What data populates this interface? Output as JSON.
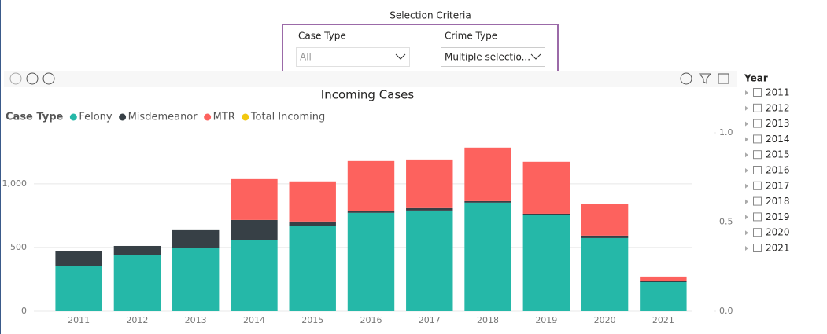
{
  "selection": {
    "title": "Selection Criteria",
    "filters": [
      {
        "label": "Case Type",
        "value": "All"
      },
      {
        "label": "Crime Type",
        "value": "Multiple selectio..."
      }
    ]
  },
  "year_slicer": {
    "title": "Year",
    "items": [
      "2011",
      "2012",
      "2013",
      "2014",
      "2015",
      "2016",
      "2017",
      "2018",
      "2019",
      "2020",
      "2021"
    ]
  },
  "chart_data": {
    "type": "bar",
    "stacked": true,
    "title": "Incoming Cases",
    "legend_title": "Case Type",
    "categories": [
      "2011",
      "2012",
      "2013",
      "2014",
      "2015",
      "2016",
      "2017",
      "2018",
      "2019",
      "2020",
      "2021"
    ],
    "series": [
      {
        "name": "Felony",
        "color": "#25B8A8",
        "values": [
          352,
          438,
          494,
          556,
          667,
          772,
          790,
          852,
          753,
          574,
          228
        ]
      },
      {
        "name": "Misdemeanor",
        "color": "#374046",
        "values": [
          117,
          74,
          142,
          160,
          37,
          12,
          19,
          12,
          12,
          19,
          7
        ]
      },
      {
        "name": "MTR",
        "color": "#FD625E",
        "values": [
          0,
          0,
          0,
          321,
          315,
          395,
          382,
          420,
          408,
          247,
          37
        ]
      },
      {
        "name": "Total Incoming",
        "color": "#F2C80F",
        "axis": "y2",
        "values": [
          null,
          null,
          null,
          null,
          null,
          null,
          null,
          null,
          null,
          null,
          null
        ]
      }
    ],
    "ylim": [
      0,
      1400
    ],
    "yticks": [
      0,
      500,
      {
        "value": 1000,
        "label": "1,000"
      }
    ],
    "y2lim": [
      0,
      1
    ],
    "y2ticks": [
      {
        "value": 0,
        "label": "0.0"
      },
      {
        "value": 0.5,
        "label": "0.5"
      },
      {
        "value": 1,
        "label": "1.0"
      }
    ],
    "grid": true
  }
}
